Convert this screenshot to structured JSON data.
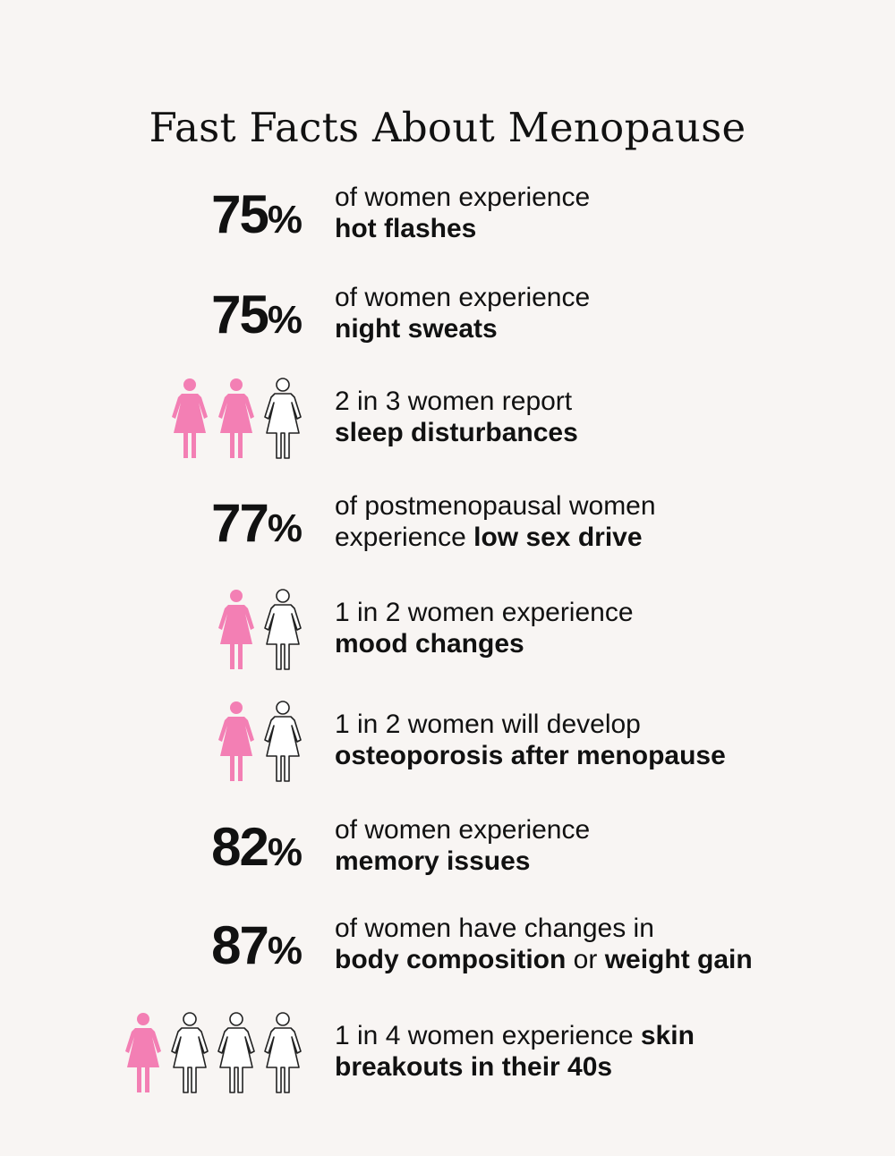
{
  "title": "Fast Facts About Menopause",
  "colors": {
    "accent": "#f37fb4",
    "outline": "#222222",
    "background": "#f8f5f3"
  },
  "facts": [
    {
      "type": "percent",
      "value": "75",
      "unit": "%",
      "lines": [
        [
          {
            "t": "of women experience",
            "b": false
          }
        ],
        [
          {
            "t": "hot flashes",
            "b": true
          }
        ]
      ]
    },
    {
      "type": "percent",
      "value": "75",
      "unit": "%",
      "lines": [
        [
          {
            "t": "of women experience",
            "b": false
          }
        ],
        [
          {
            "t": "night sweats",
            "b": true
          }
        ]
      ]
    },
    {
      "type": "ratio",
      "filled": 2,
      "total": 3,
      "icon": "woman-icon",
      "lines": [
        [
          {
            "t": "2 in 3 women report",
            "b": false
          }
        ],
        [
          {
            "t": "sleep disturbances",
            "b": true
          }
        ]
      ]
    },
    {
      "type": "percent",
      "value": "77",
      "unit": "%",
      "lines": [
        [
          {
            "t": "of postmenopausal women",
            "b": false
          }
        ],
        [
          {
            "t": "experience ",
            "b": false
          },
          {
            "t": "low sex drive",
            "b": true
          }
        ]
      ]
    },
    {
      "type": "ratio",
      "filled": 1,
      "total": 2,
      "icon": "woman-icon",
      "lines": [
        [
          {
            "t": "1 in 2 women experience",
            "b": false
          }
        ],
        [
          {
            "t": "mood changes",
            "b": true
          }
        ]
      ]
    },
    {
      "type": "ratio",
      "filled": 1,
      "total": 2,
      "icon": "woman-icon",
      "lines": [
        [
          {
            "t": "1 in 2 women will develop",
            "b": false
          }
        ],
        [
          {
            "t": "osteoporosis after menopause",
            "b": true
          }
        ]
      ]
    },
    {
      "type": "percent",
      "value": "82",
      "unit": "%",
      "lines": [
        [
          {
            "t": "of women experience",
            "b": false
          }
        ],
        [
          {
            "t": "memory issues",
            "b": true
          }
        ]
      ]
    },
    {
      "type": "percent",
      "value": "87",
      "unit": "%",
      "lines": [
        [
          {
            "t": "of women have changes in",
            "b": false
          }
        ],
        [
          {
            "t": "body composition",
            "b": true
          },
          {
            "t": " or ",
            "b": false
          },
          {
            "t": "weight gain",
            "b": true
          }
        ]
      ]
    },
    {
      "type": "ratio",
      "filled": 1,
      "total": 4,
      "icon": "woman-icon",
      "lines": [
        [
          {
            "t": "1 in 4 women experience ",
            "b": false
          },
          {
            "t": "skin",
            "b": true
          }
        ],
        [
          {
            "t": "breakouts in their 40s",
            "b": true
          }
        ]
      ]
    }
  ]
}
